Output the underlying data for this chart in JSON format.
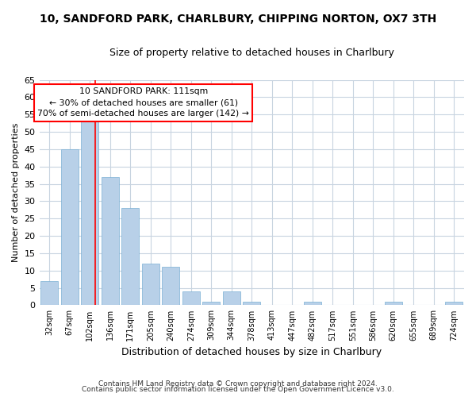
{
  "title_line1": "10, SANDFORD PARK, CHARLBURY, CHIPPING NORTON, OX7 3TH",
  "title_line2": "Size of property relative to detached houses in Charlbury",
  "xlabel": "Distribution of detached houses by size in Charlbury",
  "ylabel": "Number of detached properties",
  "bar_values": [
    7,
    45,
    53,
    37,
    28,
    12,
    11,
    4,
    1,
    4,
    1,
    0,
    0,
    1,
    0,
    0,
    0,
    1,
    0,
    0,
    1
  ],
  "categories": [
    "32sqm",
    "67sqm",
    "102sqm",
    "136sqm",
    "171sqm",
    "205sqm",
    "240sqm",
    "274sqm",
    "309sqm",
    "344sqm",
    "378sqm",
    "413sqm",
    "447sqm",
    "482sqm",
    "517sqm",
    "551sqm",
    "586sqm",
    "620sqm",
    "655sqm",
    "689sqm",
    "724sqm"
  ],
  "bar_color": "#b8d0e8",
  "bar_edge_color": "#7aafd4",
  "ylim": [
    0,
    65
  ],
  "yticks": [
    0,
    5,
    10,
    15,
    20,
    25,
    30,
    35,
    40,
    45,
    50,
    55,
    60,
    65
  ],
  "red_line_x": 2.26,
  "annotation_line1": "10 SANDFORD PARK: 111sqm",
  "annotation_line2": "← 30% of detached houses are smaller (61)",
  "annotation_line3": "70% of semi-detached houses are larger (142) →",
  "footer_line1": "Contains HM Land Registry data © Crown copyright and database right 2024.",
  "footer_line2": "Contains public sector information licensed under the Open Government Licence v3.0.",
  "bg_color": "#ffffff",
  "plot_bg_color": "#ffffff",
  "grid_color": "#c8d4e0"
}
